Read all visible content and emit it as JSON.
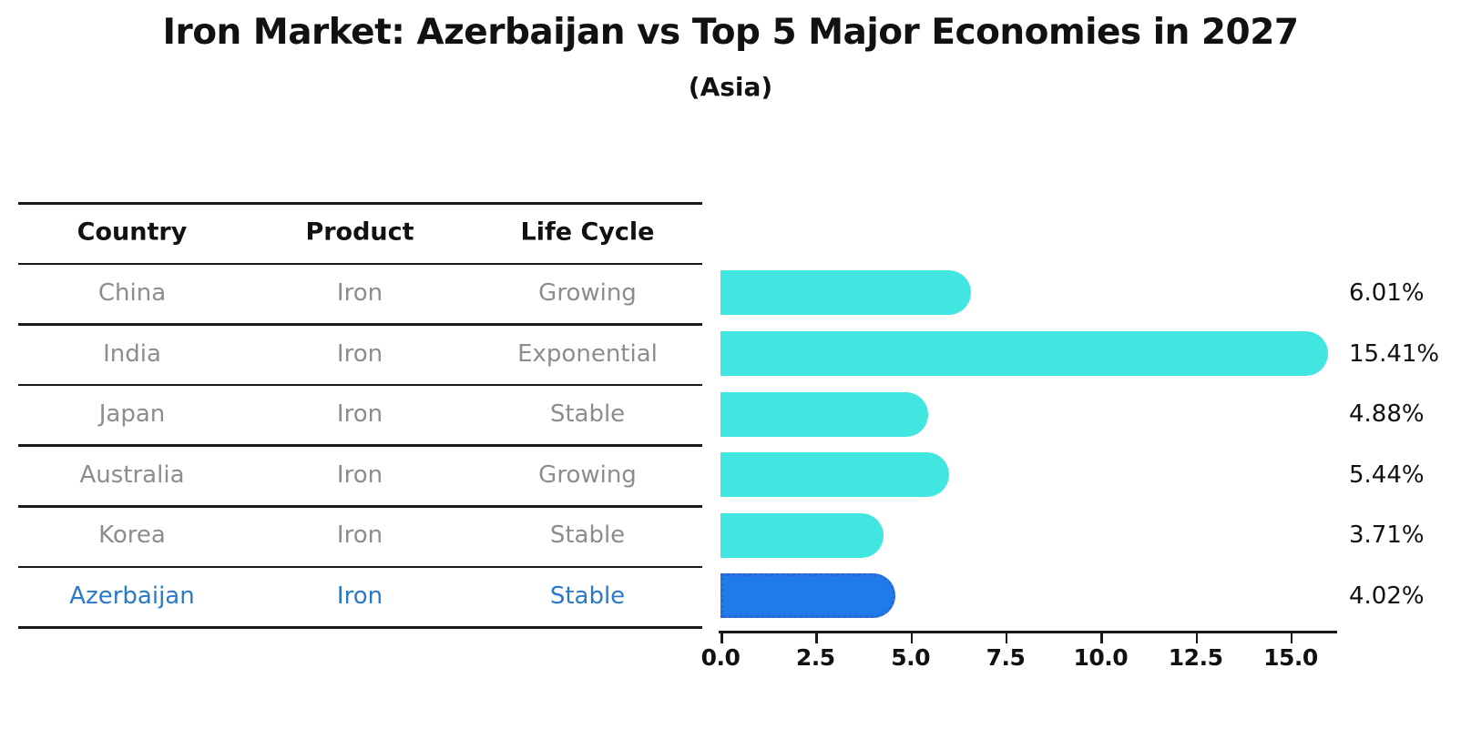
{
  "title": "Iron Market: Azerbaijan vs Top 5 Major Economies in 2027",
  "subtitle": "(Asia)",
  "table": {
    "headers": [
      "Country",
      "Product",
      "Life Cycle"
    ],
    "rows": [
      {
        "country": "China",
        "product": "Iron",
        "life_cycle": "Growing",
        "highlight": false
      },
      {
        "country": "India",
        "product": "Iron",
        "life_cycle": "Exponential",
        "highlight": false
      },
      {
        "country": "Japan",
        "product": "Iron",
        "life_cycle": "Stable",
        "highlight": false
      },
      {
        "country": "Australia",
        "product": "Iron",
        "life_cycle": "Growing",
        "highlight": false
      },
      {
        "country": "Korea",
        "product": "Iron",
        "life_cycle": "Stable",
        "highlight": false
      },
      {
        "country": "Azerbaijan",
        "product": "Iron",
        "life_cycle": "Stable",
        "highlight": true
      }
    ]
  },
  "chart_data": {
    "type": "bar",
    "orientation": "horizontal",
    "title": "Iron Market: Azerbaijan vs Top 5 Major Economies in 2027",
    "subtitle": "(Asia)",
    "categories": [
      "China",
      "India",
      "Japan",
      "Australia",
      "Korea",
      "Azerbaijan"
    ],
    "values": [
      6.01,
      15.41,
      4.88,
      5.44,
      3.71,
      4.02
    ],
    "value_labels": [
      "6.01%",
      "15.41%",
      "4.88%",
      "5.44%",
      "3.71%",
      "4.02%"
    ],
    "highlight_category": "Azerbaijan",
    "xlabel": "",
    "ylabel": "",
    "xlim": [
      0,
      16.25
    ],
    "xticks": [
      0.0,
      2.5,
      5.0,
      7.5,
      10.0,
      12.5,
      15.0
    ],
    "xtick_labels": [
      "0.0",
      "2.5",
      "5.0",
      "7.5",
      "10.0",
      "12.5",
      "15.0"
    ],
    "grid": false,
    "legend": false
  },
  "colors": {
    "bar": "#42e6e0",
    "highlight_bar": "#1f7be8",
    "highlight_bar_border": "#2a64d8",
    "row_text": "#8d8d8d",
    "highlight_text": "#2979cb",
    "line": "#1a1a1a",
    "background": "#ffffff"
  }
}
